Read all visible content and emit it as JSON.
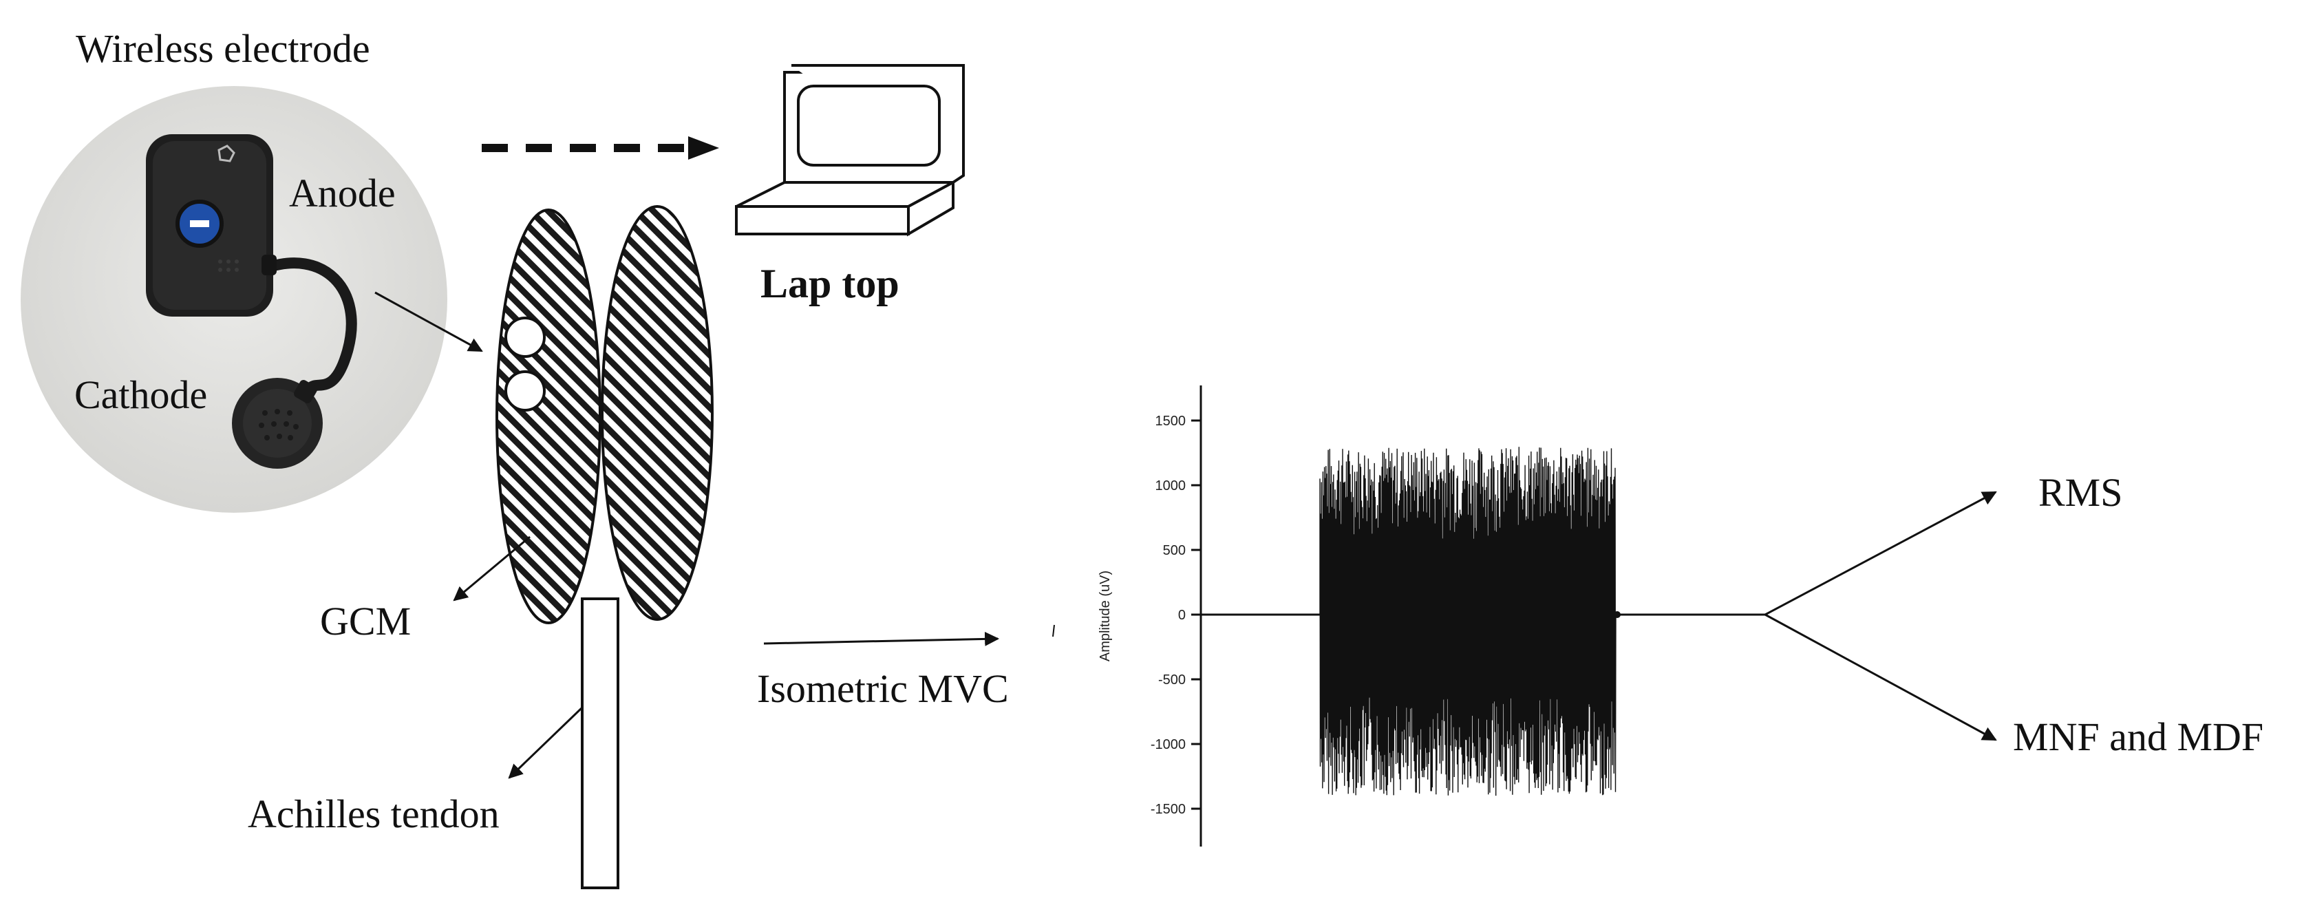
{
  "labels": {
    "wireless_electrode": "Wireless electrode",
    "anode": "Anode",
    "cathode": "Cathode",
    "laptop": "Lap top",
    "gcm": "GCM",
    "achilles": "Achilles tendon",
    "isometric_mvc": "Isometric MVC",
    "rms": "RMS",
    "mnf_mdf": "MNF and MDF"
  },
  "chart_data": {
    "type": "line",
    "title": "",
    "xlabel": "",
    "ylabel": "Amplitude (uV)",
    "ylim": [
      -1700,
      1700
    ],
    "yticks": [
      1500,
      1000,
      500,
      0,
      -500,
      -1000,
      -1500
    ],
    "signal": {
      "baseline": 0,
      "burst_envelope_peak": 1300,
      "burst_envelope_trough": -1400
    }
  },
  "colors": {
    "ink": "#111111",
    "device_body": "#202020",
    "device_button": "#1f4fa8",
    "photo_bg": "#e2e2e0"
  }
}
